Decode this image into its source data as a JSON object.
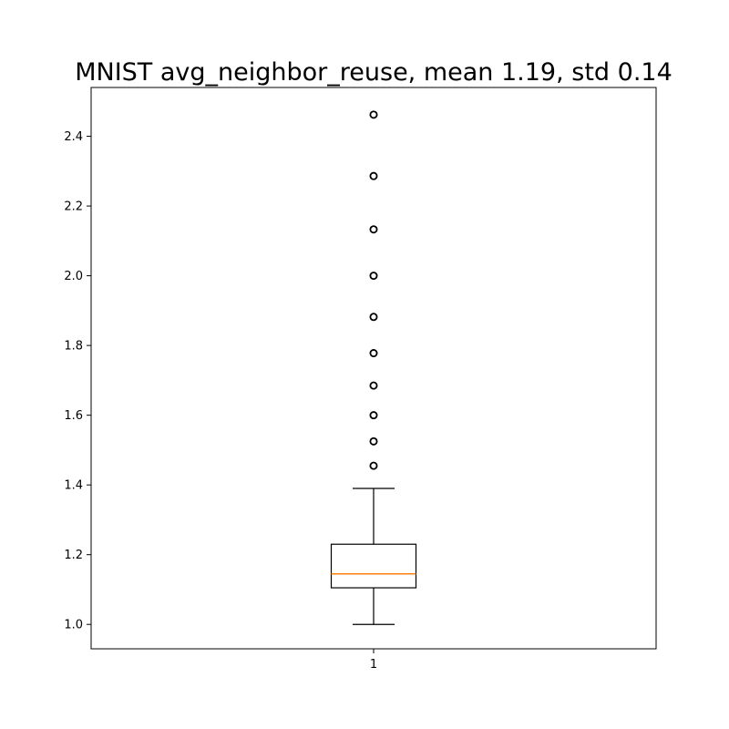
{
  "chart_data": {
    "type": "box",
    "title": "MNIST avg_neighbor_reuse, mean 1.19, std 0.14",
    "xlabel": "",
    "ylabel": "",
    "categories": [
      "1"
    ],
    "ylim": [
      0.93,
      2.54
    ],
    "yticks": [
      1.0,
      1.2,
      1.4,
      1.6,
      1.8,
      2.0,
      2.2,
      2.4
    ],
    "ytick_labels": [
      "1.0",
      "1.2",
      "1.4",
      "1.6",
      "1.8",
      "2.0",
      "2.2",
      "2.4"
    ],
    "grid": false,
    "boxes": [
      {
        "category": "1",
        "whisker_low": 1.0,
        "q1": 1.105,
        "median": 1.145,
        "q3": 1.23,
        "whisker_high": 1.39,
        "outliers": [
          1.455,
          1.525,
          1.6,
          1.685,
          1.778,
          1.882,
          2.0,
          2.133,
          2.286,
          2.462
        ]
      }
    ],
    "colors": {
      "box": "#000000",
      "median": "#ff7f0e",
      "whisker": "#000000",
      "outlier": "#000000"
    }
  }
}
